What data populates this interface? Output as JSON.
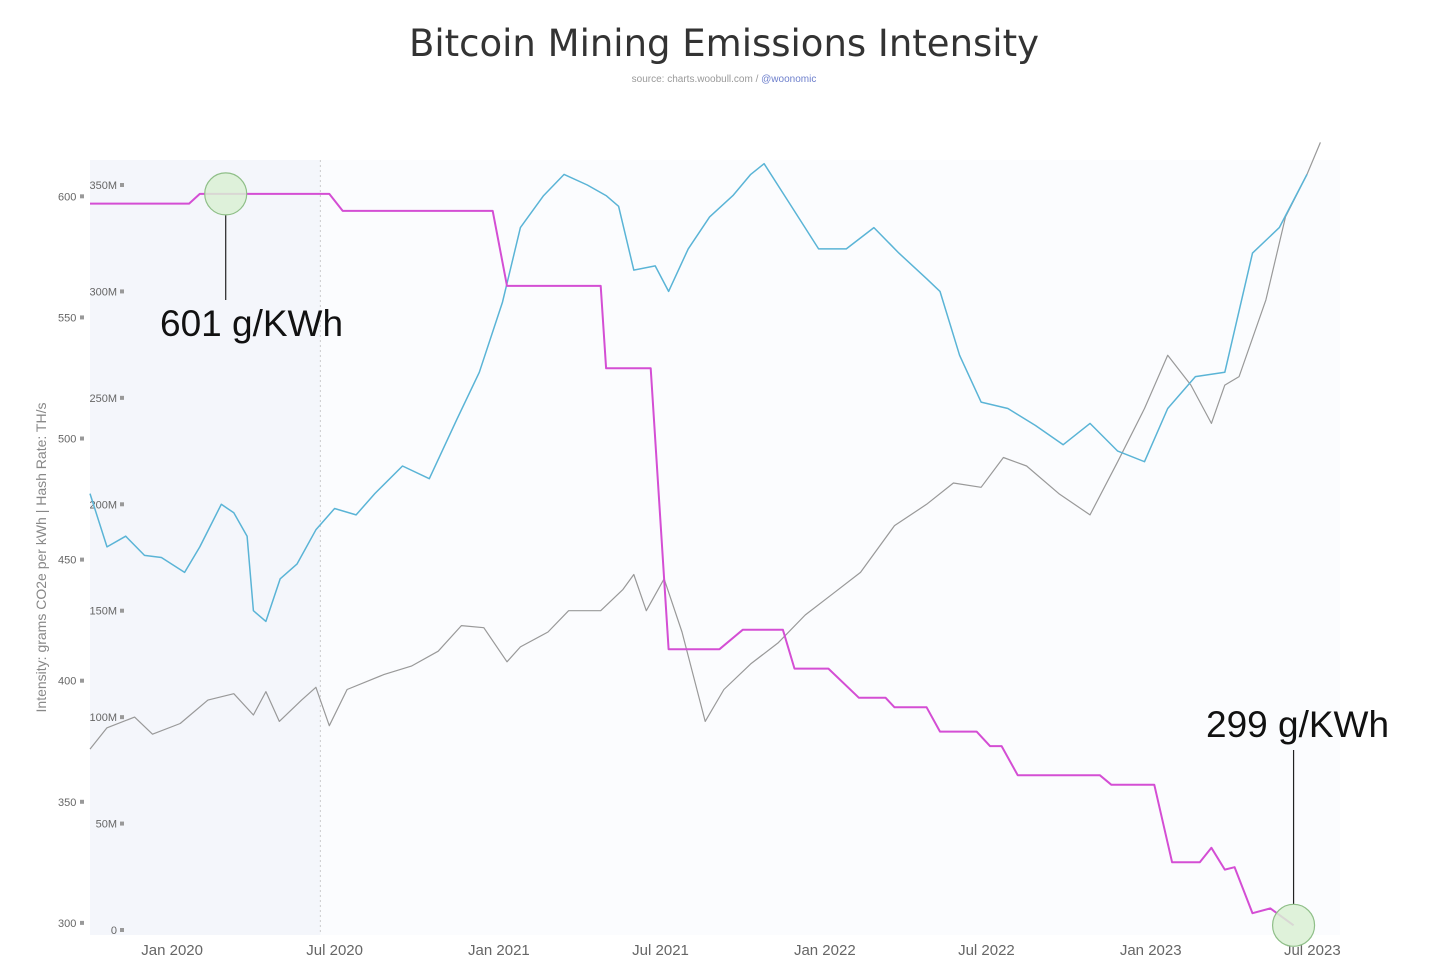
{
  "title": "Bitcoin Mining Emissions Intensity",
  "source": {
    "text": "source: charts.woobull.com / ",
    "handle": "@woonomic"
  },
  "chart_data": {
    "type": "line",
    "title": "Bitcoin Mining Emissions Intensity",
    "ylabel": "Intensity: grams CO2e per kWh | Hash Rate: TH/s",
    "x_ticks": [
      "Jan 2020",
      "Jul 2020",
      "Jan 2021",
      "Jul 2021",
      "Jan 2022",
      "Jul 2022",
      "Jan 2023",
      "Jul 2023"
    ],
    "xlim": [
      "2019-10-01",
      "2023-08-01"
    ],
    "y_axes": {
      "intensity": {
        "range": [
          295,
          615
        ],
        "ticks": [
          "600",
          "550",
          "500",
          "450",
          "400",
          "350",
          "300"
        ],
        "tick_values": [
          600,
          550,
          500,
          450,
          400,
          350,
          300
        ]
      },
      "hashrate": {
        "range": [
          0,
          350000000
        ],
        "ticks": [
          "350M",
          "300M",
          "250M",
          "200M",
          "150M",
          "100M",
          "50M",
          "0"
        ],
        "tick_values": [
          350,
          300,
          250,
          200,
          150,
          100,
          50,
          0
        ],
        "unit": "M"
      }
    },
    "shaded_until": "2020-06-15",
    "colors": {
      "intensity": "#d44ed4",
      "hashrate": "#5ab4d6",
      "price": "#999999",
      "circle_fill": "#d9f0d3",
      "circle_stroke": "#8fbf88"
    },
    "annotations": [
      {
        "text": "601 g/KWh",
        "date": "2020-03-01",
        "value": 601
      },
      {
        "text": "299 g/KWh",
        "date": "2023-06-10",
        "value": 299
      }
    ],
    "series": [
      {
        "key": "intensity",
        "axis": "intensity",
        "points": [
          [
            "2019-10-01",
            597
          ],
          [
            "2020-01-20",
            597
          ],
          [
            "2020-02-01",
            601
          ],
          [
            "2020-06-25",
            601
          ],
          [
            "2020-07-10",
            594
          ],
          [
            "2020-12-25",
            594
          ],
          [
            "2021-01-10",
            563
          ],
          [
            "2021-01-15",
            563
          ],
          [
            "2021-04-25",
            563
          ],
          [
            "2021-05-01",
            529
          ],
          [
            "2021-06-20",
            529
          ],
          [
            "2021-07-10",
            413
          ],
          [
            "2021-09-05",
            413
          ],
          [
            "2021-10-01",
            421
          ],
          [
            "2021-11-15",
            421
          ],
          [
            "2021-11-28",
            405
          ],
          [
            "2022-01-05",
            405
          ],
          [
            "2022-02-08",
            393
          ],
          [
            "2022-03-10",
            393
          ],
          [
            "2022-03-20",
            389
          ],
          [
            "2022-04-25",
            389
          ],
          [
            "2022-05-10",
            379
          ],
          [
            "2022-06-20",
            379
          ],
          [
            "2022-07-05",
            373
          ],
          [
            "2022-07-18",
            373
          ],
          [
            "2022-08-05",
            361
          ],
          [
            "2022-11-05",
            361
          ],
          [
            "2022-11-18",
            357
          ],
          [
            "2023-01-05",
            357
          ],
          [
            "2023-01-25",
            325
          ],
          [
            "2023-02-25",
            325
          ],
          [
            "2023-03-10",
            331
          ],
          [
            "2023-03-25",
            322
          ],
          [
            "2023-04-05",
            323
          ],
          [
            "2023-04-25",
            304
          ],
          [
            "2023-05-15",
            306
          ],
          [
            "2023-06-10",
            299
          ]
        ]
      },
      {
        "key": "hashrate",
        "axis": "hashrate",
        "unit": "M TH/s",
        "points": [
          [
            "2019-10-01",
            205
          ],
          [
            "2019-10-20",
            180
          ],
          [
            "2019-11-10",
            185
          ],
          [
            "2019-12-01",
            176
          ],
          [
            "2019-12-20",
            175
          ],
          [
            "2020-01-15",
            168
          ],
          [
            "2020-02-01",
            180
          ],
          [
            "2020-02-25",
            200
          ],
          [
            "2020-03-10",
            196
          ],
          [
            "2020-03-25",
            185
          ],
          [
            "2020-04-01",
            150
          ],
          [
            "2020-04-15",
            145
          ],
          [
            "2020-05-01",
            165
          ],
          [
            "2020-05-20",
            172
          ],
          [
            "2020-06-10",
            188
          ],
          [
            "2020-07-01",
            198
          ],
          [
            "2020-07-25",
            195
          ],
          [
            "2020-08-15",
            205
          ],
          [
            "2020-09-15",
            218
          ],
          [
            "2020-10-15",
            212
          ],
          [
            "2020-11-15",
            240
          ],
          [
            "2020-12-10",
            262
          ],
          [
            "2021-01-05",
            295
          ],
          [
            "2021-01-25",
            330
          ],
          [
            "2021-02-20",
            345
          ],
          [
            "2021-03-15",
            355
          ],
          [
            "2021-04-10",
            350
          ],
          [
            "2021-05-01",
            345
          ],
          [
            "2021-05-15",
            340
          ],
          [
            "2021-06-01",
            310
          ],
          [
            "2021-06-25",
            312
          ],
          [
            "2021-07-10",
            300
          ],
          [
            "2021-08-01",
            320
          ],
          [
            "2021-08-25",
            335
          ],
          [
            "2021-09-20",
            345
          ],
          [
            "2021-10-10",
            355
          ],
          [
            "2021-10-25",
            360
          ],
          [
            "2021-11-20",
            343
          ],
          [
            "2021-12-25",
            320
          ],
          [
            "2022-01-25",
            320
          ],
          [
            "2022-02-25",
            330
          ],
          [
            "2022-03-25",
            318
          ],
          [
            "2022-04-25",
            306
          ],
          [
            "2022-05-10",
            300
          ],
          [
            "2022-06-01",
            270
          ],
          [
            "2022-06-25",
            248
          ],
          [
            "2022-07-25",
            245
          ],
          [
            "2022-08-25",
            237
          ],
          [
            "2022-09-25",
            228
          ],
          [
            "2022-10-25",
            238
          ],
          [
            "2022-11-25",
            225
          ],
          [
            "2022-12-25",
            220
          ],
          [
            "2023-01-20",
            245
          ],
          [
            "2023-02-20",
            260
          ],
          [
            "2023-03-25",
            262
          ],
          [
            "2023-04-25",
            318
          ],
          [
            "2023-05-25",
            330
          ],
          [
            "2023-06-25",
            355
          ]
        ]
      },
      {
        "key": "price",
        "axis": "hashrate",
        "points": [
          [
            "2019-10-01",
            85
          ],
          [
            "2019-10-20",
            95
          ],
          [
            "2019-11-20",
            100
          ],
          [
            "2019-12-10",
            92
          ],
          [
            "2020-01-10",
            97
          ],
          [
            "2020-02-10",
            108
          ],
          [
            "2020-03-10",
            111
          ],
          [
            "2020-04-01",
            101
          ],
          [
            "2020-04-15",
            112
          ],
          [
            "2020-04-30",
            98
          ],
          [
            "2020-05-25",
            108
          ],
          [
            "2020-06-10",
            114
          ],
          [
            "2020-06-25",
            96
          ],
          [
            "2020-07-15",
            113
          ],
          [
            "2020-08-25",
            120
          ],
          [
            "2020-09-25",
            124
          ],
          [
            "2020-10-25",
            131
          ],
          [
            "2020-11-20",
            143
          ],
          [
            "2020-12-15",
            142
          ],
          [
            "2021-01-10",
            126
          ],
          [
            "2021-01-25",
            133
          ],
          [
            "2021-02-25",
            140
          ],
          [
            "2021-03-20",
            150
          ],
          [
            "2021-04-25",
            150
          ],
          [
            "2021-05-20",
            160
          ],
          [
            "2021-06-01",
            167
          ],
          [
            "2021-06-15",
            150
          ],
          [
            "2021-07-05",
            165
          ],
          [
            "2021-07-25",
            140
          ],
          [
            "2021-08-20",
            98
          ],
          [
            "2021-09-10",
            113
          ],
          [
            "2021-10-10",
            125
          ],
          [
            "2021-11-10",
            135
          ],
          [
            "2021-12-10",
            148
          ],
          [
            "2022-01-10",
            158
          ],
          [
            "2022-02-10",
            168
          ],
          [
            "2022-03-20",
            190
          ],
          [
            "2022-04-25",
            200
          ],
          [
            "2022-05-25",
            210
          ],
          [
            "2022-06-25",
            208
          ],
          [
            "2022-07-20",
            222
          ],
          [
            "2022-08-15",
            218
          ],
          [
            "2022-09-20",
            205
          ],
          [
            "2022-10-25",
            195
          ],
          [
            "2022-11-25",
            220
          ],
          [
            "2022-12-25",
            245
          ],
          [
            "2023-01-20",
            270
          ],
          [
            "2023-02-15",
            256
          ],
          [
            "2023-03-10",
            238
          ],
          [
            "2023-03-25",
            256
          ],
          [
            "2023-04-10",
            260
          ],
          [
            "2023-05-10",
            296
          ],
          [
            "2023-06-01",
            335
          ],
          [
            "2023-06-25",
            355
          ],
          [
            "2023-07-10",
            370
          ]
        ]
      }
    ]
  }
}
